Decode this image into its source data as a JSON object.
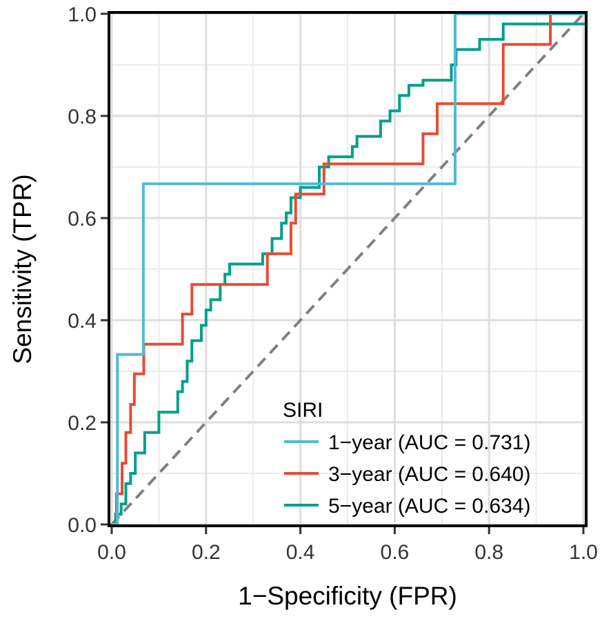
{
  "chart_data": {
    "type": "line",
    "title": "",
    "xlabel": "1−Specificity (FPR)",
    "ylabel": "Sensitivity (TPR)",
    "xlim": [
      0,
      1
    ],
    "ylim": [
      0,
      1
    ],
    "xticks": [
      0.0,
      0.2,
      0.4,
      0.6,
      0.8,
      1.0
    ],
    "yticks": [
      0.0,
      0.2,
      0.4,
      0.6,
      0.8,
      1.0
    ],
    "xtick_labels": [
      "0.0",
      "0.2",
      "0.4",
      "0.6",
      "0.8",
      "1.0"
    ],
    "ytick_labels": [
      "0.0",
      "0.2",
      "0.4",
      "0.6",
      "0.8",
      "1.0"
    ],
    "grid": true,
    "legend": {
      "title": "SIRI",
      "position": "bottom-right"
    },
    "reference_line": {
      "style": "dashed",
      "color": "#808080",
      "from": [
        0,
        0
      ],
      "to": [
        1,
        1
      ]
    },
    "series": [
      {
        "name": "1−year (AUC = 0.731)",
        "color": "#4DBBD5",
        "x": [
          0.0,
          0.012,
          0.012,
          0.067,
          0.067,
          0.728,
          0.728,
          1.0
        ],
        "y": [
          0.0,
          0.0,
          0.333,
          0.333,
          0.667,
          0.667,
          1.0,
          1.0
        ]
      },
      {
        "name": "3−year (AUC = 0.640)",
        "color": "#E64B35",
        "x": [
          0.0,
          0.01,
          0.01,
          0.022,
          0.022,
          0.03,
          0.03,
          0.04,
          0.04,
          0.048,
          0.048,
          0.068,
          0.068,
          0.082,
          0.082,
          0.15,
          0.15,
          0.17,
          0.17,
          0.33,
          0.33,
          0.37,
          0.37,
          0.38,
          0.38,
          0.39,
          0.39,
          0.45,
          0.45,
          0.66,
          0.66,
          0.69,
          0.69,
          0.83,
          0.83,
          0.93,
          0.93,
          1.0
        ],
        "y": [
          0.0,
          0.0,
          0.06,
          0.06,
          0.12,
          0.12,
          0.18,
          0.18,
          0.235,
          0.235,
          0.295,
          0.295,
          0.353,
          0.353,
          0.353,
          0.353,
          0.412,
          0.412,
          0.47,
          0.47,
          0.53,
          0.53,
          0.53,
          0.53,
          0.59,
          0.59,
          0.647,
          0.647,
          0.706,
          0.706,
          0.765,
          0.765,
          0.824,
          0.824,
          0.94,
          0.94,
          1.0,
          1.0
        ]
      },
      {
        "name": "5−year (AUC = 0.634)",
        "color": "#00A087",
        "x": [
          0.0,
          0.008,
          0.008,
          0.02,
          0.02,
          0.03,
          0.03,
          0.04,
          0.04,
          0.05,
          0.05,
          0.07,
          0.07,
          0.1,
          0.1,
          0.14,
          0.14,
          0.15,
          0.15,
          0.16,
          0.16,
          0.17,
          0.17,
          0.19,
          0.19,
          0.2,
          0.2,
          0.21,
          0.21,
          0.23,
          0.23,
          0.24,
          0.24,
          0.25,
          0.25,
          0.32,
          0.32,
          0.34,
          0.34,
          0.36,
          0.36,
          0.37,
          0.37,
          0.38,
          0.38,
          0.4,
          0.4,
          0.44,
          0.44,
          0.46,
          0.46,
          0.51,
          0.51,
          0.52,
          0.52,
          0.57,
          0.57,
          0.59,
          0.59,
          0.61,
          0.61,
          0.63,
          0.63,
          0.66,
          0.66,
          0.72,
          0.72,
          0.73,
          0.73,
          0.78,
          0.78,
          0.83,
          0.83,
          0.84,
          0.84,
          0.93,
          0.93,
          1.0
        ],
        "y": [
          0.0,
          0.0,
          0.02,
          0.02,
          0.04,
          0.04,
          0.08,
          0.08,
          0.1,
          0.1,
          0.14,
          0.14,
          0.18,
          0.18,
          0.22,
          0.22,
          0.26,
          0.26,
          0.28,
          0.28,
          0.32,
          0.32,
          0.36,
          0.36,
          0.39,
          0.39,
          0.42,
          0.42,
          0.44,
          0.44,
          0.47,
          0.47,
          0.49,
          0.49,
          0.51,
          0.51,
          0.53,
          0.53,
          0.56,
          0.56,
          0.59,
          0.59,
          0.61,
          0.61,
          0.64,
          0.64,
          0.66,
          0.66,
          0.7,
          0.7,
          0.72,
          0.72,
          0.74,
          0.74,
          0.76,
          0.76,
          0.79,
          0.79,
          0.81,
          0.81,
          0.84,
          0.84,
          0.86,
          0.86,
          0.87,
          0.87,
          0.9,
          0.9,
          0.93,
          0.93,
          0.95,
          0.95,
          0.98,
          0.98,
          0.98,
          0.98,
          0.98,
          0.98
        ]
      }
    ]
  }
}
